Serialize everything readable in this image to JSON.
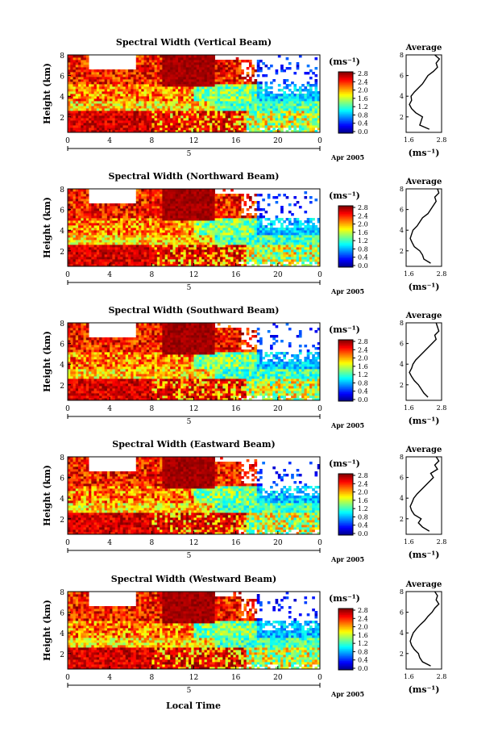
{
  "figure": {
    "common_x_label": "Local Time",
    "date_label": "Apr 2005",
    "day_label": "5",
    "colorbar_unit": "(ms⁻¹)",
    "average_unit": "(ms⁻¹)",
    "average_title": "Average"
  },
  "chart_data": [
    {
      "type": "heatmap",
      "title": "Spectral Width (Vertical Beam)",
      "ylabel": "Height (km)",
      "xlabel": "",
      "x_ticks": [
        "0",
        "4",
        "8",
        "12",
        "16",
        "20",
        "0"
      ],
      "y_ticks": [
        "2",
        "4",
        "6",
        "8"
      ],
      "xlim": [
        0,
        24
      ],
      "ylim": [
        0.5,
        8
      ],
      "colorbar": {
        "ticks": [
          "0.0",
          "0.4",
          "0.8",
          "1.2",
          "1.6",
          "2.0",
          "2.4",
          "2.8"
        ],
        "range": [
          0,
          2.8
        ]
      },
      "average_profile": {
        "xlim": [
          1.5,
          2.8
        ],
        "x_ticks": [
          "1.6",
          "2.8"
        ],
        "height_km": [
          0.8,
          1.2,
          1.6,
          2.0,
          2.4,
          2.8,
          3.2,
          3.6,
          4.0,
          4.4,
          4.8,
          5.2,
          5.6,
          6.0,
          6.4,
          6.8,
          7.2,
          7.6,
          8.0
        ],
        "width": [
          2.35,
          2.0,
          2.05,
          2.1,
          1.85,
          1.7,
          1.62,
          1.7,
          1.68,
          1.8,
          1.95,
          2.1,
          2.2,
          2.3,
          2.5,
          2.65,
          2.6,
          2.72,
          2.55
        ]
      }
    },
    {
      "type": "heatmap",
      "title": "Spectral Width (Northward Beam)",
      "ylabel": "Height (km)",
      "xlabel": "",
      "x_ticks": [
        "0",
        "4",
        "8",
        "12",
        "16",
        "20",
        "0"
      ],
      "y_ticks": [
        "2",
        "4",
        "6",
        "8"
      ],
      "xlim": [
        0,
        24
      ],
      "ylim": [
        0.5,
        8
      ],
      "colorbar": {
        "ticks": [
          "0.0",
          "0.4",
          "0.8",
          "1.2",
          "1.6",
          "2.0",
          "2.4",
          "2.8"
        ],
        "range": [
          0,
          2.8
        ]
      },
      "average_profile": {
        "xlim": [
          1.5,
          2.8
        ],
        "x_ticks": [
          "1.6",
          "2.8"
        ],
        "height_km": [
          0.8,
          1.2,
          1.6,
          2.0,
          2.4,
          2.8,
          3.2,
          3.6,
          4.0,
          4.4,
          4.8,
          5.2,
          5.6,
          6.0,
          6.4,
          6.8,
          7.2,
          7.6,
          8.0
        ],
        "width": [
          2.4,
          2.15,
          2.1,
          2.0,
          1.8,
          1.72,
          1.65,
          1.7,
          1.75,
          1.9,
          2.0,
          2.1,
          2.3,
          2.4,
          2.5,
          2.6,
          2.55,
          2.7,
          2.65
        ]
      }
    },
    {
      "type": "heatmap",
      "title": "Spectral Width (Southward Beam)",
      "ylabel": "Height (km)",
      "xlabel": "",
      "x_ticks": [
        "0",
        "4",
        "8",
        "12",
        "16",
        "20",
        "0"
      ],
      "y_ticks": [
        "2",
        "4",
        "6",
        "8"
      ],
      "xlim": [
        0,
        24
      ],
      "ylim": [
        0.5,
        8
      ],
      "colorbar": {
        "ticks": [
          "0.0",
          "0.4",
          "0.8",
          "1.2",
          "1.6",
          "2.0",
          "2.4",
          "2.8"
        ],
        "range": [
          0,
          2.8
        ]
      },
      "average_profile": {
        "xlim": [
          1.5,
          2.8
        ],
        "x_ticks": [
          "1.6",
          "2.8"
        ],
        "height_km": [
          0.8,
          1.2,
          1.6,
          2.0,
          2.4,
          2.8,
          3.2,
          3.6,
          4.0,
          4.4,
          4.8,
          5.2,
          5.6,
          6.0,
          6.4,
          6.8,
          7.2,
          7.6,
          8.0
        ],
        "width": [
          2.3,
          2.15,
          2.05,
          1.95,
          1.8,
          1.7,
          1.62,
          1.7,
          1.75,
          1.85,
          2.0,
          2.15,
          2.3,
          2.45,
          2.6,
          2.55,
          2.7,
          2.65,
          2.6
        ]
      }
    },
    {
      "type": "heatmap",
      "title": "Spectral Width (Eastward Beam)",
      "ylabel": "Height (km)",
      "xlabel": "",
      "x_ticks": [
        "0",
        "4",
        "8",
        "12",
        "16",
        "20",
        "0"
      ],
      "y_ticks": [
        "2",
        "4",
        "6",
        "8"
      ],
      "xlim": [
        0,
        24
      ],
      "ylim": [
        0.5,
        8
      ],
      "colorbar": {
        "ticks": [
          "0.0",
          "0.4",
          "0.8",
          "1.2",
          "1.6",
          "2.0",
          "2.4",
          "2.8"
        ],
        "range": [
          0,
          2.8
        ]
      },
      "average_profile": {
        "xlim": [
          1.5,
          2.8
        ],
        "x_ticks": [
          "1.6",
          "2.8"
        ],
        "height_km": [
          0.8,
          1.2,
          1.6,
          2.0,
          2.4,
          2.8,
          3.2,
          3.6,
          4.0,
          4.4,
          4.8,
          5.2,
          5.6,
          6.0,
          6.4,
          6.8,
          7.2,
          7.6,
          8.0
        ],
        "width": [
          2.35,
          2.1,
          1.95,
          2.05,
          1.8,
          1.7,
          1.65,
          1.72,
          1.78,
          1.9,
          2.05,
          2.2,
          2.35,
          2.5,
          2.4,
          2.65,
          2.55,
          2.7,
          2.6
        ]
      }
    },
    {
      "type": "heatmap",
      "title": "Spectral Width (Westward Beam)",
      "ylabel": "Height (km)",
      "xlabel": "Local Time",
      "x_ticks": [
        "0",
        "4",
        "8",
        "12",
        "16",
        "20",
        "0"
      ],
      "y_ticks": [
        "2",
        "4",
        "6",
        "8"
      ],
      "xlim": [
        0,
        24
      ],
      "ylim": [
        0.5,
        8
      ],
      "colorbar": {
        "ticks": [
          "0.0",
          "0.4",
          "0.8",
          "1.2",
          "1.6",
          "2.0",
          "2.4",
          "2.8"
        ],
        "range": [
          0,
          2.8
        ]
      },
      "average_profile": {
        "xlim": [
          1.5,
          2.8
        ],
        "x_ticks": [
          "1.6",
          "2.8"
        ],
        "height_km": [
          0.8,
          1.2,
          1.6,
          2.0,
          2.4,
          2.8,
          3.2,
          3.6,
          4.0,
          4.4,
          4.8,
          5.2,
          5.6,
          6.0,
          6.4,
          6.8,
          7.2,
          7.6,
          8.0
        ],
        "width": [
          2.4,
          2.1,
          2.0,
          1.95,
          1.8,
          1.7,
          1.65,
          1.7,
          1.76,
          1.88,
          2.02,
          2.18,
          2.3,
          2.45,
          2.55,
          2.7,
          2.6,
          2.65,
          2.55
        ]
      }
    }
  ]
}
